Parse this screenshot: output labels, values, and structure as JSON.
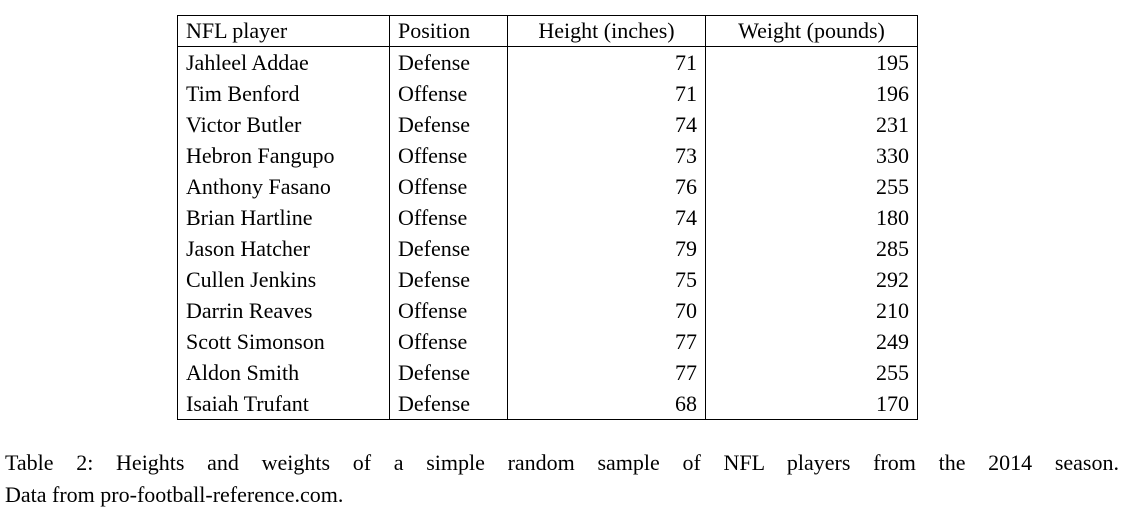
{
  "table": {
    "columns": [
      "NFL player",
      "Position",
      "Height (inches)",
      "Weight (pounds)"
    ],
    "rows": [
      [
        "Jahleel Addae",
        "Defense",
        "71",
        "195"
      ],
      [
        "Tim Benford",
        "Offense",
        "71",
        "196"
      ],
      [
        "Victor Butler",
        "Defense",
        "74",
        "231"
      ],
      [
        "Hebron Fangupo",
        "Offense",
        "73",
        "330"
      ],
      [
        "Anthony Fasano",
        "Offense",
        "76",
        "255"
      ],
      [
        "Brian Hartline",
        "Offense",
        "74",
        "180"
      ],
      [
        "Jason Hatcher",
        "Defense",
        "79",
        "285"
      ],
      [
        "Cullen Jenkins",
        "Defense",
        "75",
        "292"
      ],
      [
        "Darrin Reaves",
        "Offense",
        "70",
        "210"
      ],
      [
        "Scott Simonson",
        "Offense",
        "77",
        "249"
      ],
      [
        "Aldon Smith",
        "Defense",
        "77",
        "255"
      ],
      [
        "Isaiah Trufant",
        "Defense",
        "68",
        "170"
      ]
    ]
  },
  "caption": {
    "line1": "Table 2: Heights and weights of a simple random sample of NFL players from the 2014 season.",
    "line2": "Data from pro-football-reference.com."
  },
  "colors": {
    "text": "#000000",
    "background": "#ffffff",
    "border": "#000000"
  },
  "chart_data": {
    "type": "table",
    "title": "Table 2: Heights and weights of a simple random sample of NFL players from the 2014 season. Data from pro-football-reference.com.",
    "columns": [
      "NFL player",
      "Position",
      "Height (inches)",
      "Weight (pounds)"
    ],
    "rows": [
      [
        "Jahleel Addae",
        "Defense",
        71,
        195
      ],
      [
        "Tim Benford",
        "Offense",
        71,
        196
      ],
      [
        "Victor Butler",
        "Defense",
        74,
        231
      ],
      [
        "Hebron Fangupo",
        "Offense",
        73,
        330
      ],
      [
        "Anthony Fasano",
        "Offense",
        76,
        255
      ],
      [
        "Brian Hartline",
        "Offense",
        74,
        180
      ],
      [
        "Jason Hatcher",
        "Defense",
        79,
        285
      ],
      [
        "Cullen Jenkins",
        "Defense",
        75,
        292
      ],
      [
        "Darrin Reaves",
        "Offense",
        70,
        210
      ],
      [
        "Scott Simonson",
        "Offense",
        77,
        249
      ],
      [
        "Aldon Smith",
        "Defense",
        77,
        255
      ],
      [
        "Isaiah Trufant",
        "Defense",
        68,
        170
      ]
    ]
  }
}
